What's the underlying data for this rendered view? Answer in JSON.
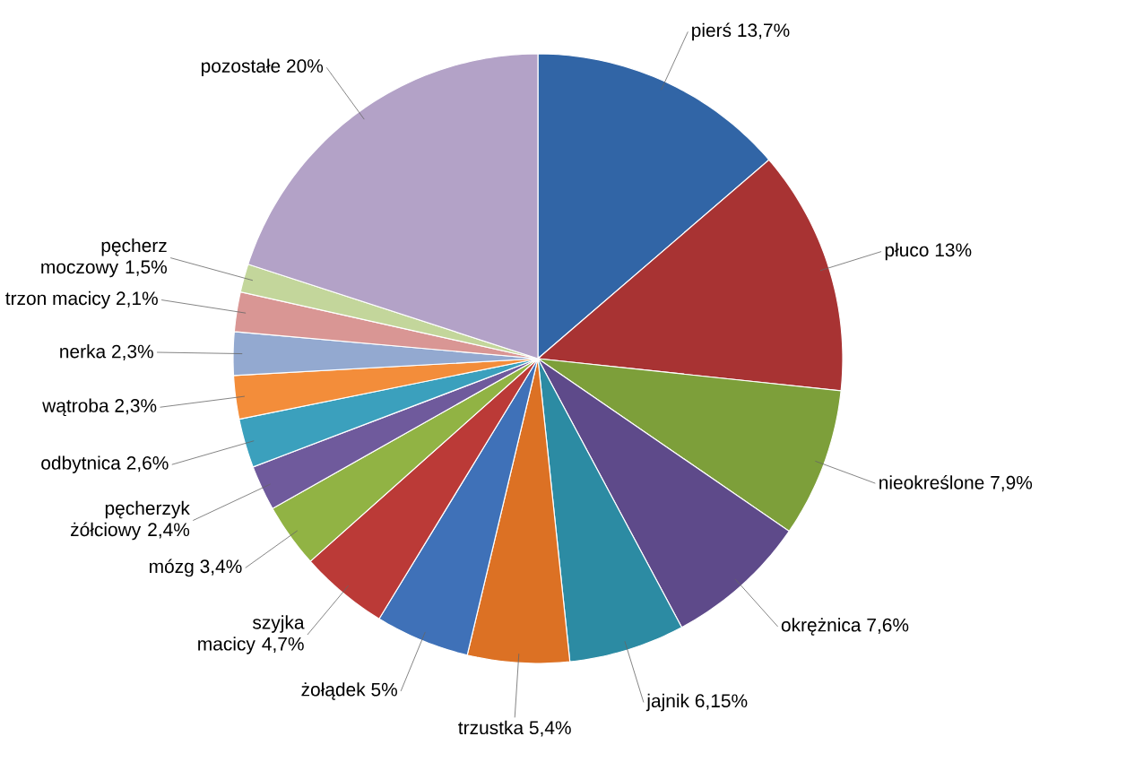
{
  "chart_data": {
    "type": "pie",
    "categories": [
      "pierś",
      "płuco",
      "nieokreślone",
      "okrężnica",
      "jajnik",
      "trzustka",
      "żołądek",
      "szyjka macicy",
      "mózg",
      "pęcherzyk żółciowy",
      "odbytnica",
      "wątroba",
      "nerka",
      "trzon macicy",
      "pęcherz moczowy",
      "pozostałe"
    ],
    "values": [
      13.7,
      13,
      7.9,
      7.6,
      6.15,
      5.4,
      5,
      4.7,
      3.4,
      2.4,
      2.6,
      2.3,
      2.3,
      2.1,
      1.5,
      20
    ],
    "value_labels": [
      "13,7%",
      "13%",
      "7,9%",
      "7,6%",
      "6,15%",
      "5,4%",
      "5%",
      "4,7%",
      "3,4%",
      "2,4%",
      "2,6%",
      "2,3%",
      "2,3%",
      "2,1%",
      "1,5%",
      "20%"
    ],
    "colors": [
      "#3165a6",
      "#a83333",
      "#7d9f3a",
      "#5e4a8a",
      "#2c8ba3",
      "#dc7124",
      "#3f71b8",
      "#bb3a37",
      "#91b344",
      "#6f5a9c",
      "#3ba0bd",
      "#f38d3a",
      "#93a9d0",
      "#d99694",
      "#c3d69b",
      "#b3a2c7"
    ]
  }
}
